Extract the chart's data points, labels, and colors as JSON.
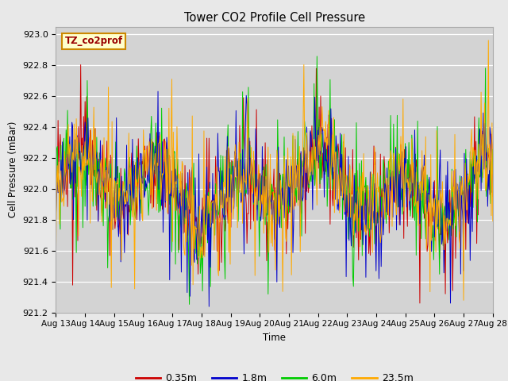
{
  "title": "Tower CO2 Profile Cell Pressure",
  "ylabel": "Cell Pressure (mBar)",
  "xlabel": "Time",
  "annotation": "TZ_co2prof",
  "ylim": [
    921.2,
    923.05
  ],
  "xlim": [
    0,
    15
  ],
  "xtick_labels": [
    "Aug 13",
    "Aug 14",
    "Aug 15",
    "Aug 16",
    "Aug 17",
    "Aug 18",
    "Aug 19",
    "Aug 20",
    "Aug 21",
    "Aug 22",
    "Aug 23",
    "Aug 24",
    "Aug 25",
    "Aug 26",
    "Aug 27",
    "Aug 28"
  ],
  "ytick_values": [
    921.2,
    921.4,
    921.6,
    921.8,
    922.0,
    922.2,
    922.4,
    922.6,
    922.8,
    923.0
  ],
  "series_labels": [
    "0.35m",
    "1.8m",
    "6.0m",
    "23.5m"
  ],
  "series_colors": [
    "#cc0000",
    "#0000cc",
    "#00cc00",
    "#ffaa00"
  ],
  "fig_bg_color": "#e8e8e8",
  "plot_bg_color": "#d3d3d3",
  "base_pressure": 922.0,
  "n_points": 600,
  "seed": 42
}
